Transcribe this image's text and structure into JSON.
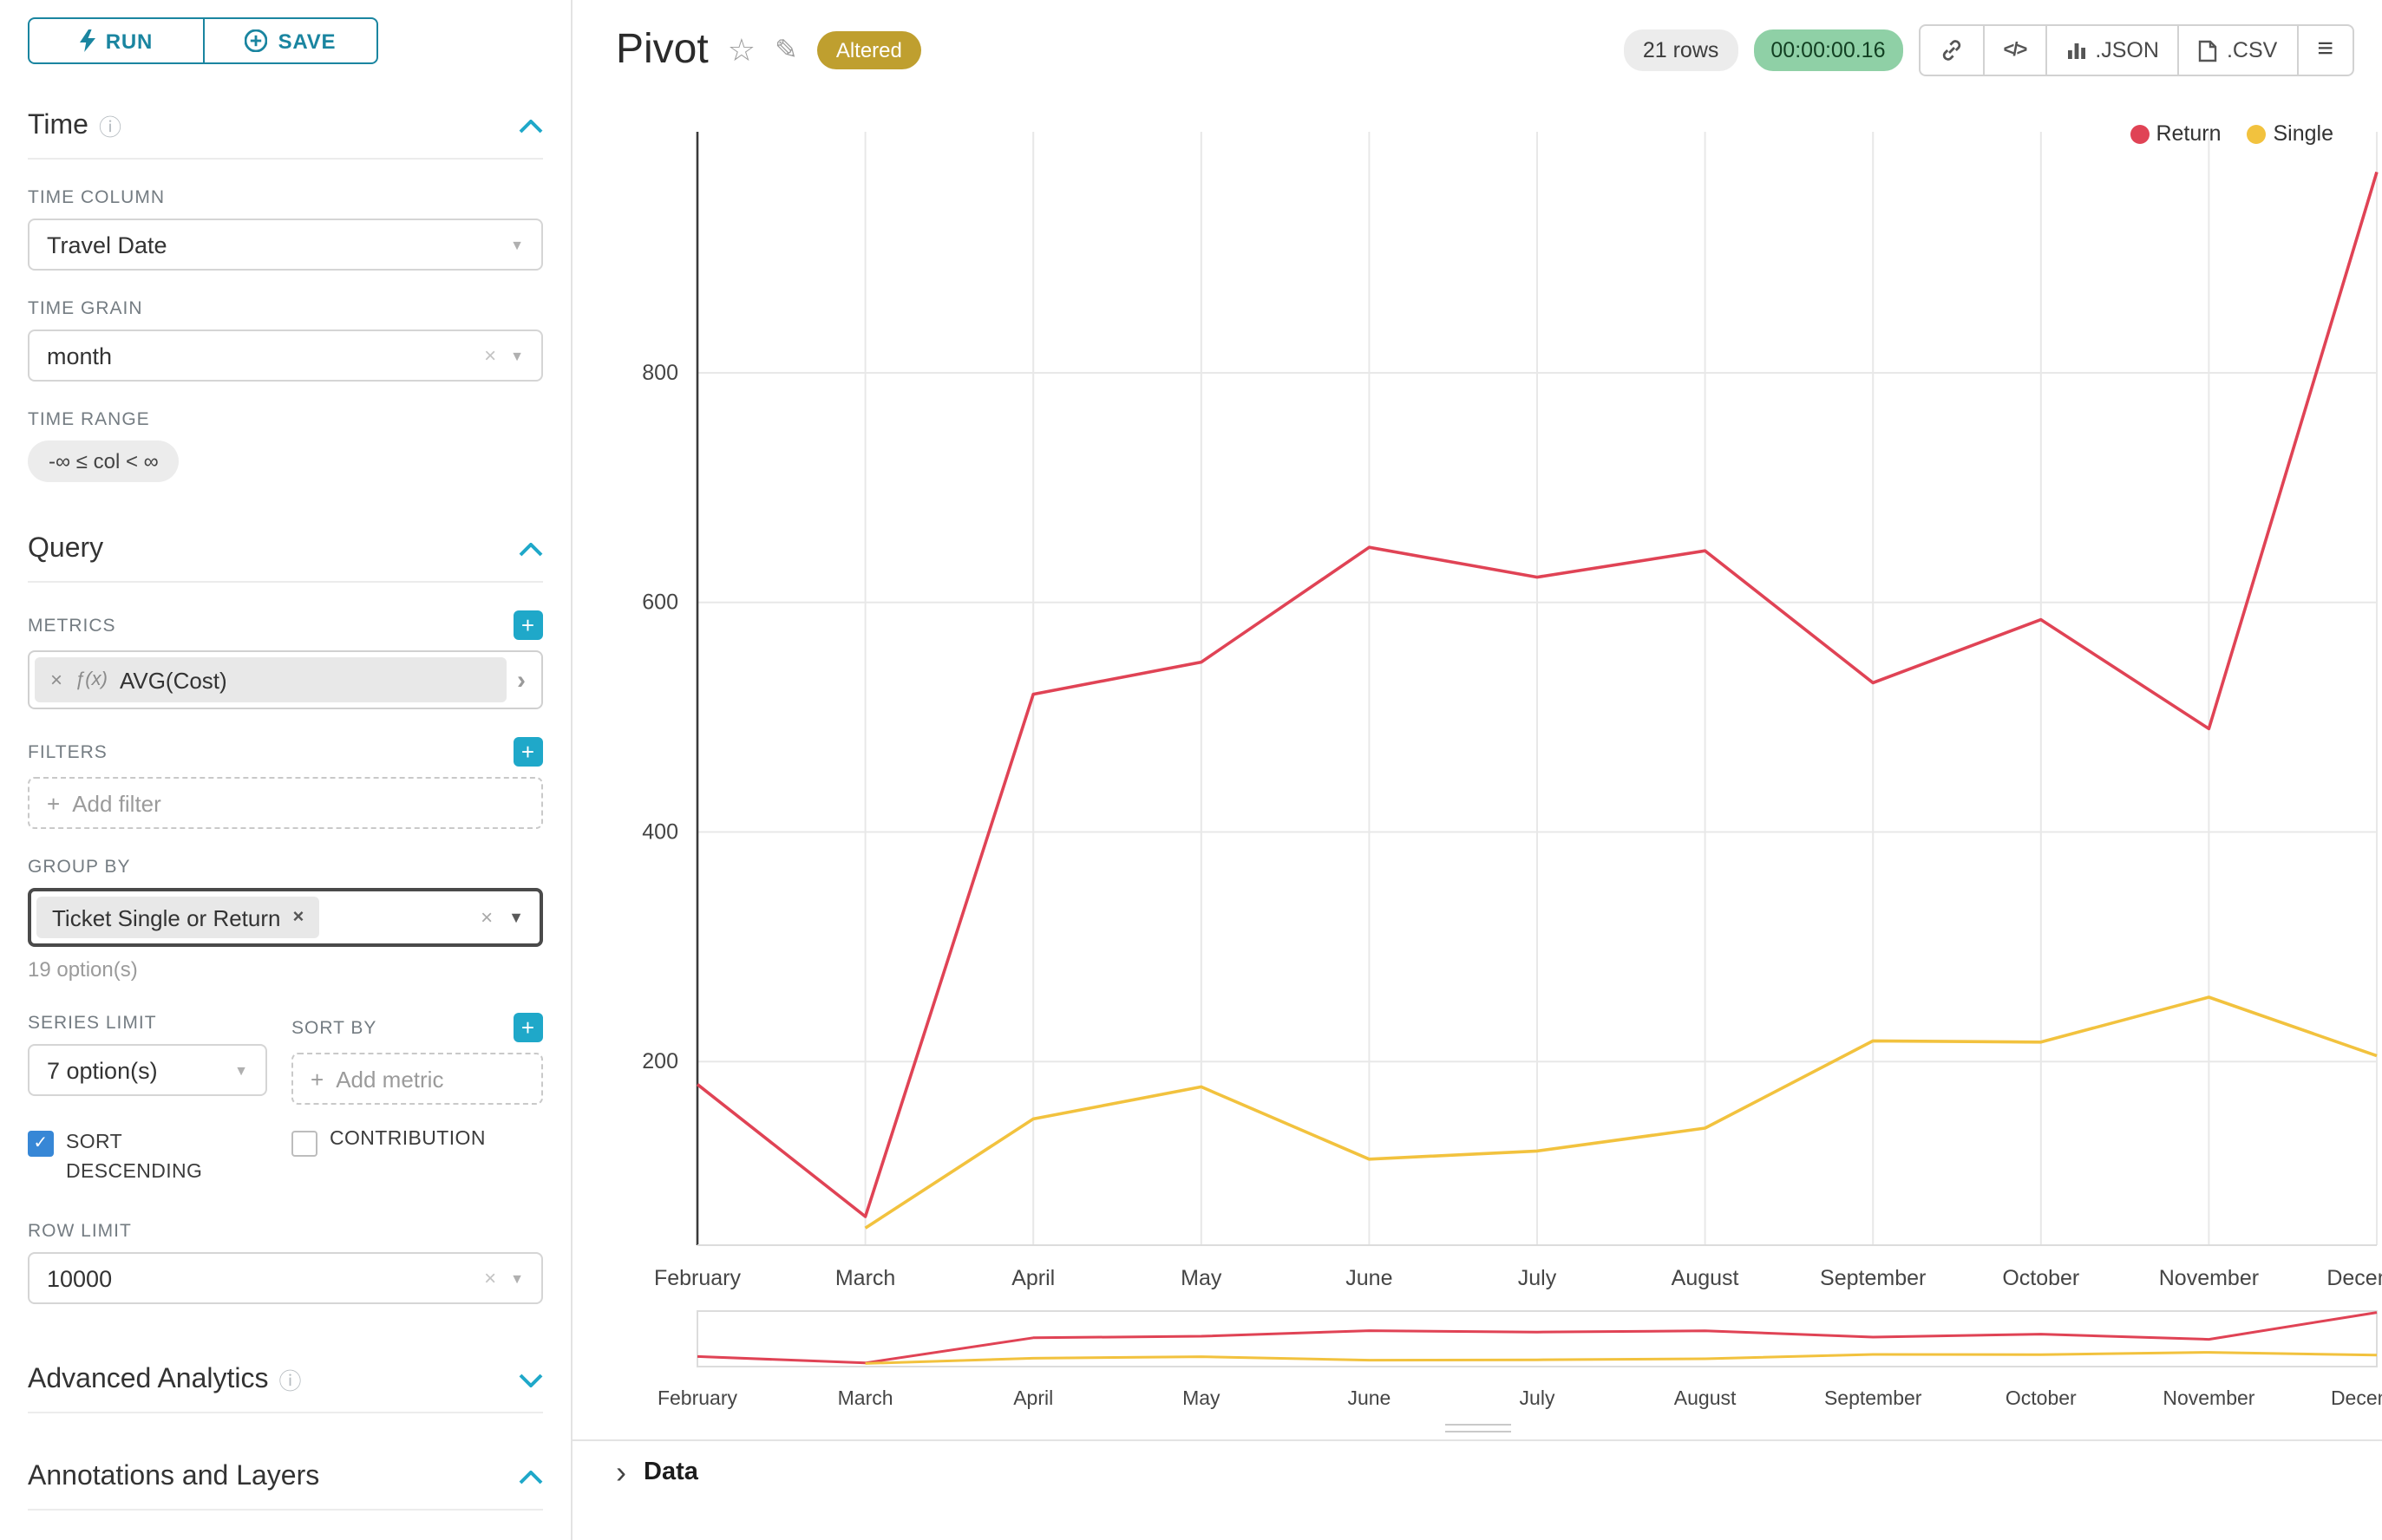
{
  "icons": {
    "plus": "+",
    "close": "×",
    "check": "✓",
    "caret": "▼",
    "chevron_right": "›",
    "star": "☆",
    "pencil": "✎",
    "info": "ⓘ",
    "hamburger": "≡",
    "code": "</>"
  },
  "toolbar": {
    "run": "RUN",
    "save": "SAVE"
  },
  "panels": {
    "time": {
      "title": "Time",
      "time_column_label": "TIME COLUMN",
      "time_column_value": "Travel Date",
      "time_grain_label": "TIME GRAIN",
      "time_grain_value": "month",
      "time_range_label": "TIME RANGE",
      "time_range_value": "-∞ ≤ col < ∞"
    },
    "query": {
      "title": "Query",
      "metrics_label": "METRICS",
      "metric_fx": "ƒ(x)",
      "metric_name": "AVG(Cost)",
      "filters_label": "FILTERS",
      "add_filter_label": "Add filter",
      "group_by_label": "GROUP BY",
      "group_by_value": "Ticket Single or Return",
      "group_by_hint": "19 option(s)",
      "series_limit_label": "SERIES LIMIT",
      "series_limit_value": "7 option(s)",
      "sort_by_label": "SORT BY",
      "add_metric_label": "Add metric",
      "sort_descending_label": "SORT DESCENDING",
      "contribution_label": "CONTRIBUTION",
      "row_limit_label": "ROW LIMIT",
      "row_limit_value": "10000"
    },
    "advanced": {
      "title": "Advanced Analytics"
    },
    "annotations": {
      "title": "Annotations and Layers"
    }
  },
  "header": {
    "title": "Pivot",
    "altered": "Altered",
    "rows": "21 rows",
    "timer": "00:00:00.16",
    "json": ".JSON",
    "csv": ".CSV"
  },
  "chart_data": {
    "type": "line",
    "title": "Pivot",
    "categories": [
      "February",
      "March",
      "April",
      "May",
      "June",
      "July",
      "August",
      "September",
      "October",
      "November",
      "December"
    ],
    "series": [
      {
        "name": "Return",
        "color": "#e04355",
        "values": [
          180,
          65,
          520,
          548,
          648,
          622,
          645,
          530,
          585,
          490,
          975
        ]
      },
      {
        "name": "Single",
        "color": "#f2c23e",
        "values": [
          null,
          55,
          150,
          178,
          115,
          122,
          142,
          218,
          217,
          256,
          205
        ]
      }
    ],
    "yticks": [
      200,
      400,
      600,
      800
    ],
    "ylim": [
      40,
      1010
    ],
    "xlabel": "",
    "ylabel": "",
    "grid": true,
    "legend_position": "top-right"
  },
  "data_panel": {
    "label": "Data"
  }
}
